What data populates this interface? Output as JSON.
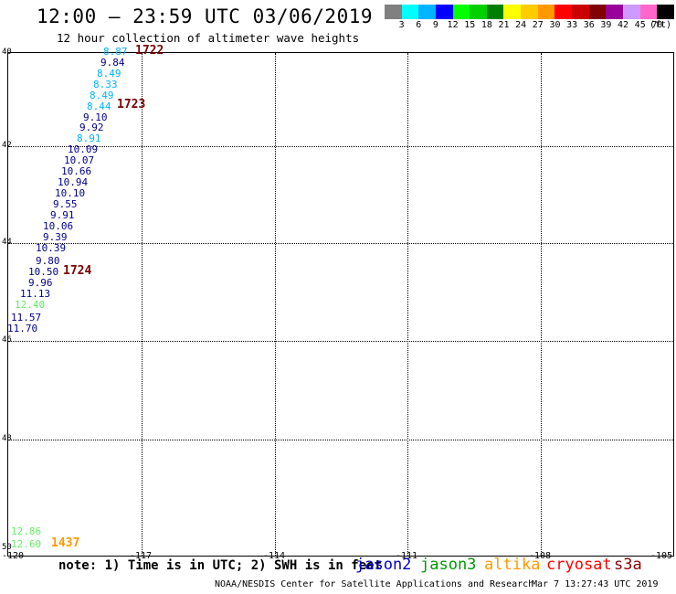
{
  "header": {
    "title": "12:00 – 23:59 UTC 03/06/2019",
    "subtitle": "12 hour collection of altimeter wave heights"
  },
  "colorbar": {
    "colors": [
      "#808080",
      "#00ffff",
      "#00b4ff",
      "#0000ff",
      "#00ff00",
      "#00d000",
      "#008000",
      "#ffff00",
      "#ffcc00",
      "#ff9900",
      "#ff0000",
      "#cc0000",
      "#800000",
      "#990099",
      "#cc99ff",
      "#ff66cc",
      "#000000"
    ],
    "ticks": [
      "3",
      "6",
      "9",
      "12",
      "15",
      "18",
      "21",
      "24",
      "27",
      "30",
      "33",
      "36",
      "39",
      "42",
      "45",
      "70"
    ],
    "unit": "(ft)"
  },
  "map": {
    "lat_labels": [
      "40",
      "42",
      "44",
      "46",
      "48",
      "50"
    ],
    "lon_labels": [
      "-120",
      "-117",
      "-114",
      "-111",
      "-108",
      "-105"
    ]
  },
  "observations": [
    {
      "v": "8.87",
      "c": "#00b4ff"
    },
    {
      "v": "9.84",
      "c": "#00008b"
    },
    {
      "v": "8.49",
      "c": "#00b4ff"
    },
    {
      "v": "8.33",
      "c": "#00b4ff"
    },
    {
      "v": "8.49",
      "c": "#00b4ff"
    },
    {
      "v": "8.44",
      "c": "#00b4ff"
    },
    {
      "v": "9.10",
      "c": "#00008b"
    },
    {
      "v": "9.92",
      "c": "#00008b"
    },
    {
      "v": "8.91",
      "c": "#00b4ff"
    },
    {
      "v": "10.09",
      "c": "#00008b"
    },
    {
      "v": "10.07",
      "c": "#00008b"
    },
    {
      "v": "10.66",
      "c": "#00008b"
    },
    {
      "v": "10.94",
      "c": "#00008b"
    },
    {
      "v": "10.10",
      "c": "#00008b"
    },
    {
      "v": "9.55",
      "c": "#00008b"
    },
    {
      "v": "9.91",
      "c": "#00008b"
    },
    {
      "v": "10.06",
      "c": "#00008b"
    },
    {
      "v": "9.39",
      "c": "#00008b"
    },
    {
      "v": "10.39",
      "c": "#00008b"
    },
    {
      "v": "9.80",
      "c": "#00008b"
    },
    {
      "v": "10.50",
      "c": "#00008b"
    },
    {
      "v": "9.96",
      "c": "#00008b"
    },
    {
      "v": "11.13",
      "c": "#00008b"
    },
    {
      "v": "12.40",
      "c": "#66ee66"
    },
    {
      "v": "11.57",
      "c": "#00008b"
    },
    {
      "v": "11.70",
      "c": "#00008b"
    },
    {
      "v": "12.86",
      "c": "#66ee66"
    },
    {
      "v": "12.60",
      "c": "#66ee66"
    }
  ],
  "times": [
    {
      "t": "1722",
      "c": "#7a0000"
    },
    {
      "t": "1723",
      "c": "#7a0000"
    },
    {
      "t": "1724",
      "c": "#7a0000"
    },
    {
      "t": "1437",
      "c": "#ff9900"
    }
  ],
  "footer": {
    "note": "note: 1) Time is in UTC; 2) SWH is in feet",
    "satellites": [
      {
        "name": "jason2",
        "color": "#0000cc"
      },
      {
        "name": "jason3",
        "color": "#009900"
      },
      {
        "name": "altika",
        "color": "#ff9900"
      },
      {
        "name": "cryosat",
        "color": "#ff0000"
      },
      {
        "name": "s3a",
        "color": "#8b0000"
      }
    ],
    "credit": "NOAA/NESDIS Center for Satellite Applications and Research",
    "timestamp": "Mar  7 13:27:43 UTC 2019"
  }
}
